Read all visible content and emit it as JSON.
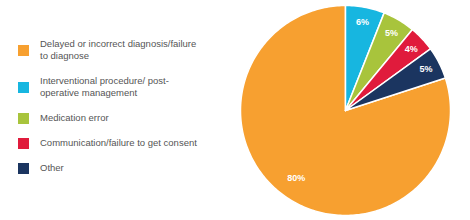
{
  "chart_data": {
    "type": "pie",
    "categories": [
      "Delayed or incorrect diagnosis/failure to diagnose",
      "Interventional procedure/ post-operative management",
      "Medication error",
      "Communication/failure to get consent",
      "Other"
    ],
    "values": [
      80,
      6,
      5,
      4,
      5
    ],
    "value_labels": [
      "80%",
      "6%",
      "5%",
      "4%",
      "5%"
    ],
    "colors": [
      "#f7a030",
      "#17b6e0",
      "#a8c43c",
      "#e01b3c",
      "#1b3560"
    ],
    "data_labels": true,
    "legend": "left"
  }
}
